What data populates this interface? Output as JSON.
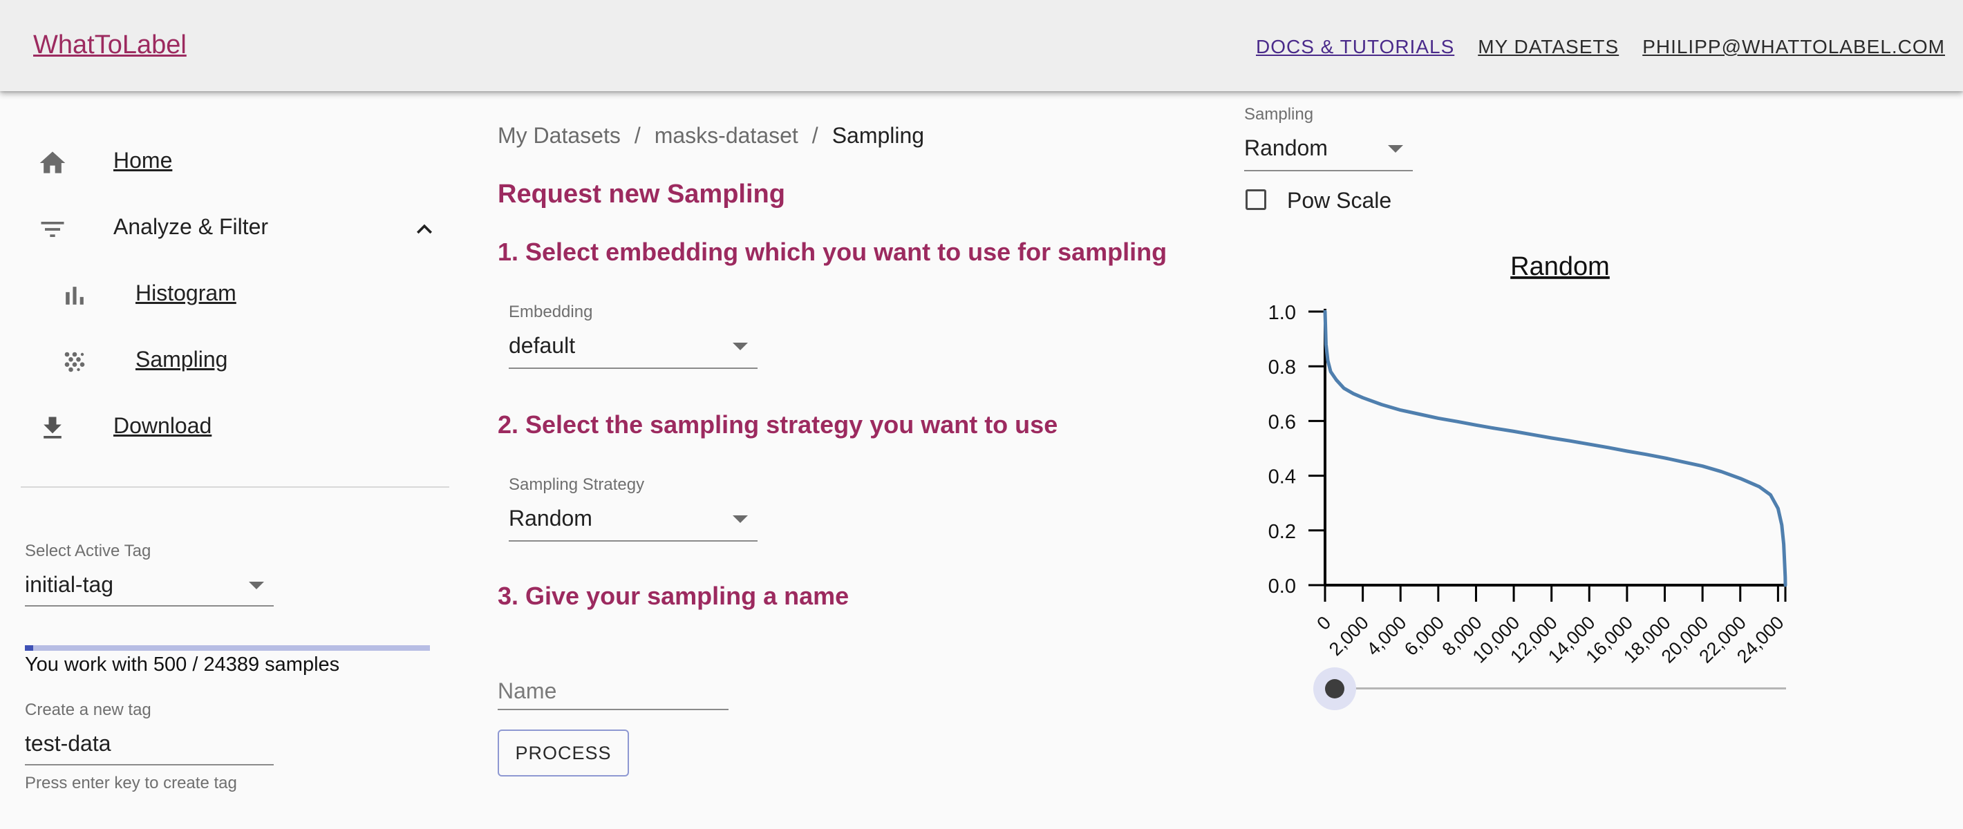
{
  "header": {
    "brand": "WhatToLabel",
    "links": [
      "DOCS & TUTORIALS",
      "MY DATASETS",
      "PHILIPP@WHATTOLABEL.COM"
    ]
  },
  "sidebar": {
    "items": [
      {
        "label": "Home",
        "icon": "home-icon"
      },
      {
        "label": "Analyze & Filter",
        "icon": "filter-icon",
        "expanded": true
      },
      {
        "label": "Histogram",
        "icon": "bar-chart-icon"
      },
      {
        "label": "Sampling",
        "icon": "scatter-dots-icon"
      },
      {
        "label": "Download",
        "icon": "download-icon"
      }
    ],
    "active_tag": {
      "label": "Select Active Tag",
      "value": "initial-tag"
    },
    "samples": {
      "used": 500,
      "total": 24389,
      "text": "You work with 500 / 24389 samples"
    },
    "new_tag": {
      "label": "Create a new tag",
      "value": "test-data",
      "helper": "Press enter key to create tag"
    }
  },
  "breadcrumb": [
    "My Datasets",
    "masks-dataset",
    "Sampling"
  ],
  "main": {
    "title": "Request new Sampling",
    "step1": "1. Select embedding which you want to use for sampling",
    "embedding": {
      "label": "Embedding",
      "value": "default"
    },
    "step2": "2. Select the sampling strategy you want to use",
    "strategy": {
      "label": "Sampling Strategy",
      "value": "Random"
    },
    "step3": "3. Give your sampling a name",
    "name_placeholder": "Name",
    "process_button": "PROCESS"
  },
  "right_panel": {
    "sampling": {
      "label": "Sampling",
      "value": "Random"
    },
    "pow_scale": {
      "label": "Pow Scale",
      "checked": false
    },
    "slider_value": 0
  },
  "chart_data": {
    "type": "line",
    "title": "Random",
    "xlim": [
      0,
      24389
    ],
    "ylim": [
      0,
      1
    ],
    "x_ticks": [
      "0",
      "2,000",
      "4,000",
      "6,000",
      "8,000",
      "10,000",
      "12,000",
      "14,000",
      "16,000",
      "18,000",
      "20,000",
      "22,000",
      "24,000"
    ],
    "y_ticks": [
      "0.0",
      "0.2",
      "0.4",
      "0.6",
      "0.8",
      "1.0"
    ],
    "series": [
      {
        "color": "#4f7fae",
        "x": [
          0,
          50,
          150,
          300,
          600,
          1000,
          1500,
          2000,
          3000,
          4000,
          5000,
          6000,
          7000,
          8000,
          9000,
          10000,
          11000,
          12000,
          13000,
          14000,
          15000,
          16000,
          17000,
          18000,
          19000,
          20000,
          21000,
          22000,
          23000,
          23600,
          24000,
          24200,
          24300,
          24350,
          24380,
          24389
        ],
        "y": [
          1.0,
          0.88,
          0.82,
          0.78,
          0.75,
          0.72,
          0.7,
          0.685,
          0.66,
          0.64,
          0.625,
          0.61,
          0.598,
          0.585,
          0.573,
          0.562,
          0.55,
          0.538,
          0.527,
          0.515,
          0.503,
          0.49,
          0.478,
          0.465,
          0.45,
          0.435,
          0.415,
          0.39,
          0.36,
          0.33,
          0.28,
          0.22,
          0.15,
          0.08,
          0.03,
          0.0
        ]
      }
    ]
  }
}
